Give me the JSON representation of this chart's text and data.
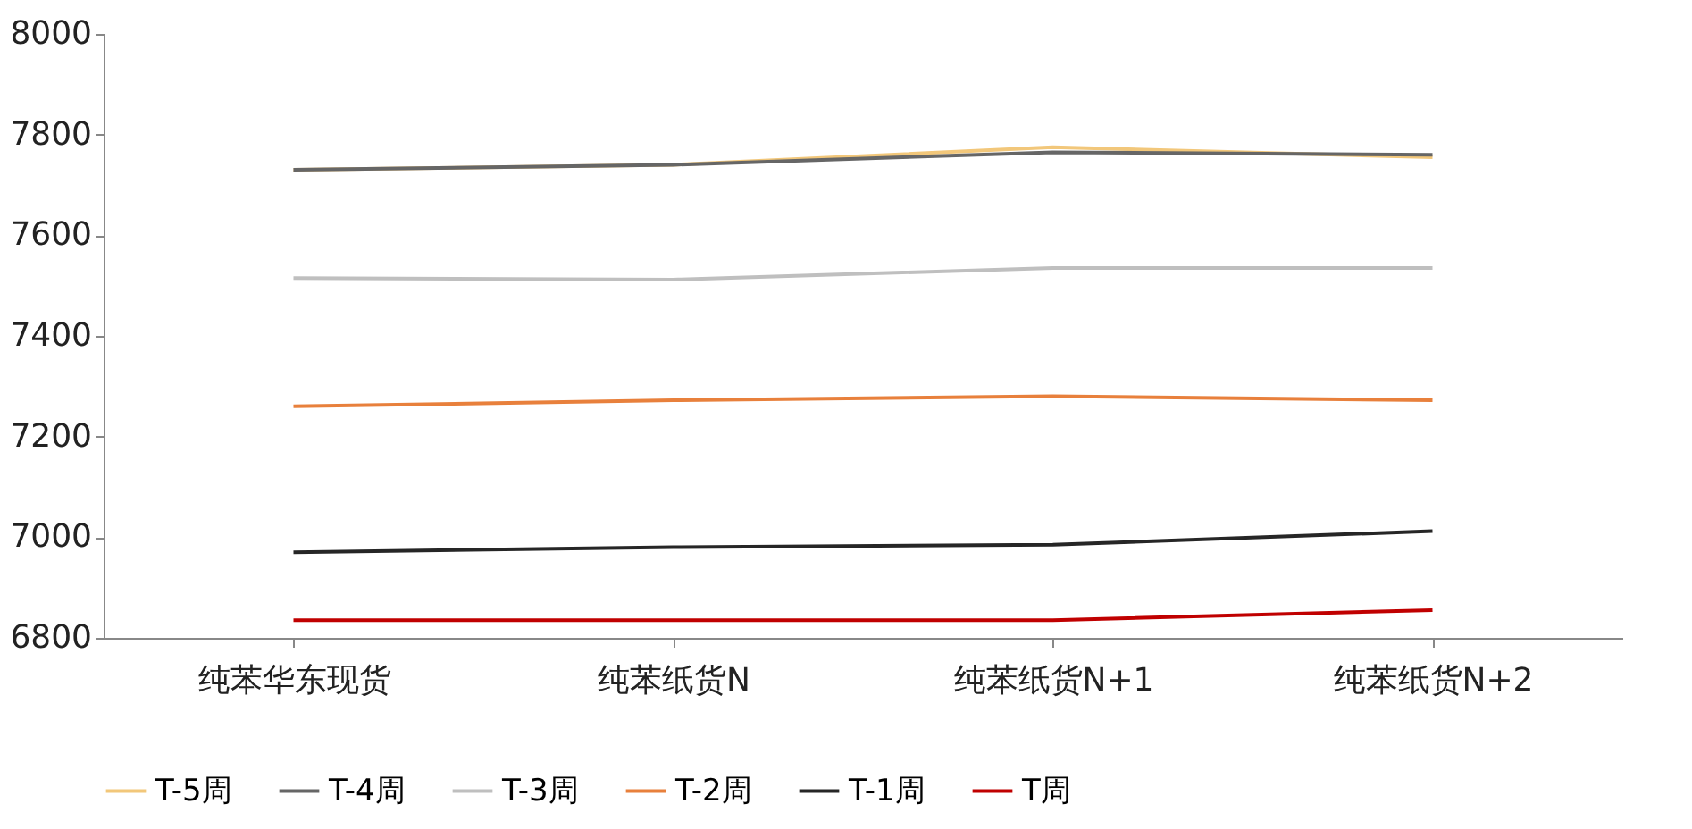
{
  "chart_data": {
    "type": "line",
    "categories": [
      "纯苯华东现货",
      "纯苯纸货N",
      "纯苯纸货N+1",
      "纯苯纸货N+2"
    ],
    "series": [
      {
        "name": "T-5周",
        "color": "#f2c77a",
        "values": [
          7730,
          7740,
          7775,
          7755
        ]
      },
      {
        "name": "T-4周",
        "color": "#666666",
        "values": [
          7730,
          7740,
          7765,
          7760
        ]
      },
      {
        "name": "T-3周",
        "color": "#bfbfbf",
        "values": [
          7515,
          7512,
          7535,
          7535
        ]
      },
      {
        "name": "T-2周",
        "color": "#e8803c",
        "values": [
          7260,
          7272,
          7280,
          7272
        ]
      },
      {
        "name": "T-1周",
        "color": "#262626",
        "values": [
          6970,
          6980,
          6985,
          7012
        ]
      },
      {
        "name": "T周",
        "color": "#c00000",
        "values": [
          6835,
          6835,
          6835,
          6855
        ]
      }
    ],
    "ylim": [
      6800,
      8000
    ],
    "yticks": [
      6800,
      7000,
      7200,
      7400,
      7600,
      7800,
      8000
    ],
    "grid": false,
    "legend": "bottom",
    "marker": "none",
    "line_style": "solid"
  }
}
